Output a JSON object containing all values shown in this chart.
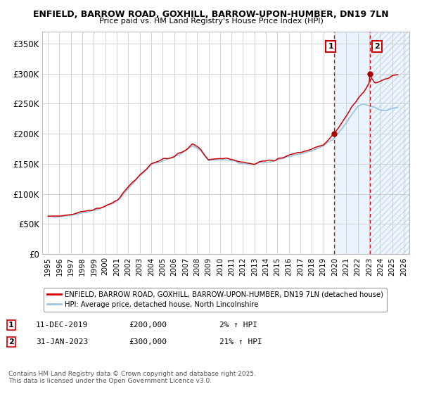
{
  "title_line1": "ENFIELD, BARROW ROAD, GOXHILL, BARROW-UPON-HUMBER, DN19 7LN",
  "title_line2": "Price paid vs. HM Land Registry's House Price Index (HPI)",
  "ylim": [
    0,
    370000
  ],
  "xlim_start": 1994.5,
  "xlim_end": 2026.5,
  "yticks": [
    0,
    50000,
    100000,
    150000,
    200000,
    250000,
    300000,
    350000
  ],
  "ytick_labels": [
    "£0",
    "£50K",
    "£100K",
    "£150K",
    "£200K",
    "£250K",
    "£300K",
    "£350K"
  ],
  "hpi_color": "#9ec4e0",
  "price_color": "#cc0000",
  "marker_color": "#aa0000",
  "vline_color": "#cc0000",
  "highlight_bg": "#ddeeff",
  "grid_color": "#cccccc",
  "background_color": "#ffffff",
  "annotation1_date": 2019.94,
  "annotation1_price": 200000,
  "annotation1_label": "1",
  "annotation2_date": 2023.08,
  "annotation2_price": 300000,
  "annotation2_label": "2",
  "legend_label_red": "ENFIELD, BARROW ROAD, GOXHILL, BARROW-UPON-HUMBER, DN19 7LN (detached house)",
  "legend_label_blue": "HPI: Average price, detached house, North Lincolnshire",
  "note1_label": "1",
  "note1_date": "11-DEC-2019",
  "note1_price": "£200,000",
  "note1_hpi": "2% ↑ HPI",
  "note2_label": "2",
  "note2_date": "31-JAN-2023",
  "note2_price": "£300,000",
  "note2_hpi": "21% ↑ HPI",
  "footer": "Contains HM Land Registry data © Crown copyright and database right 2025.\nThis data is licensed under the Open Government Licence v3.0.",
  "hatch_region_start": 2023.08,
  "hatch_region_end": 2026.5
}
